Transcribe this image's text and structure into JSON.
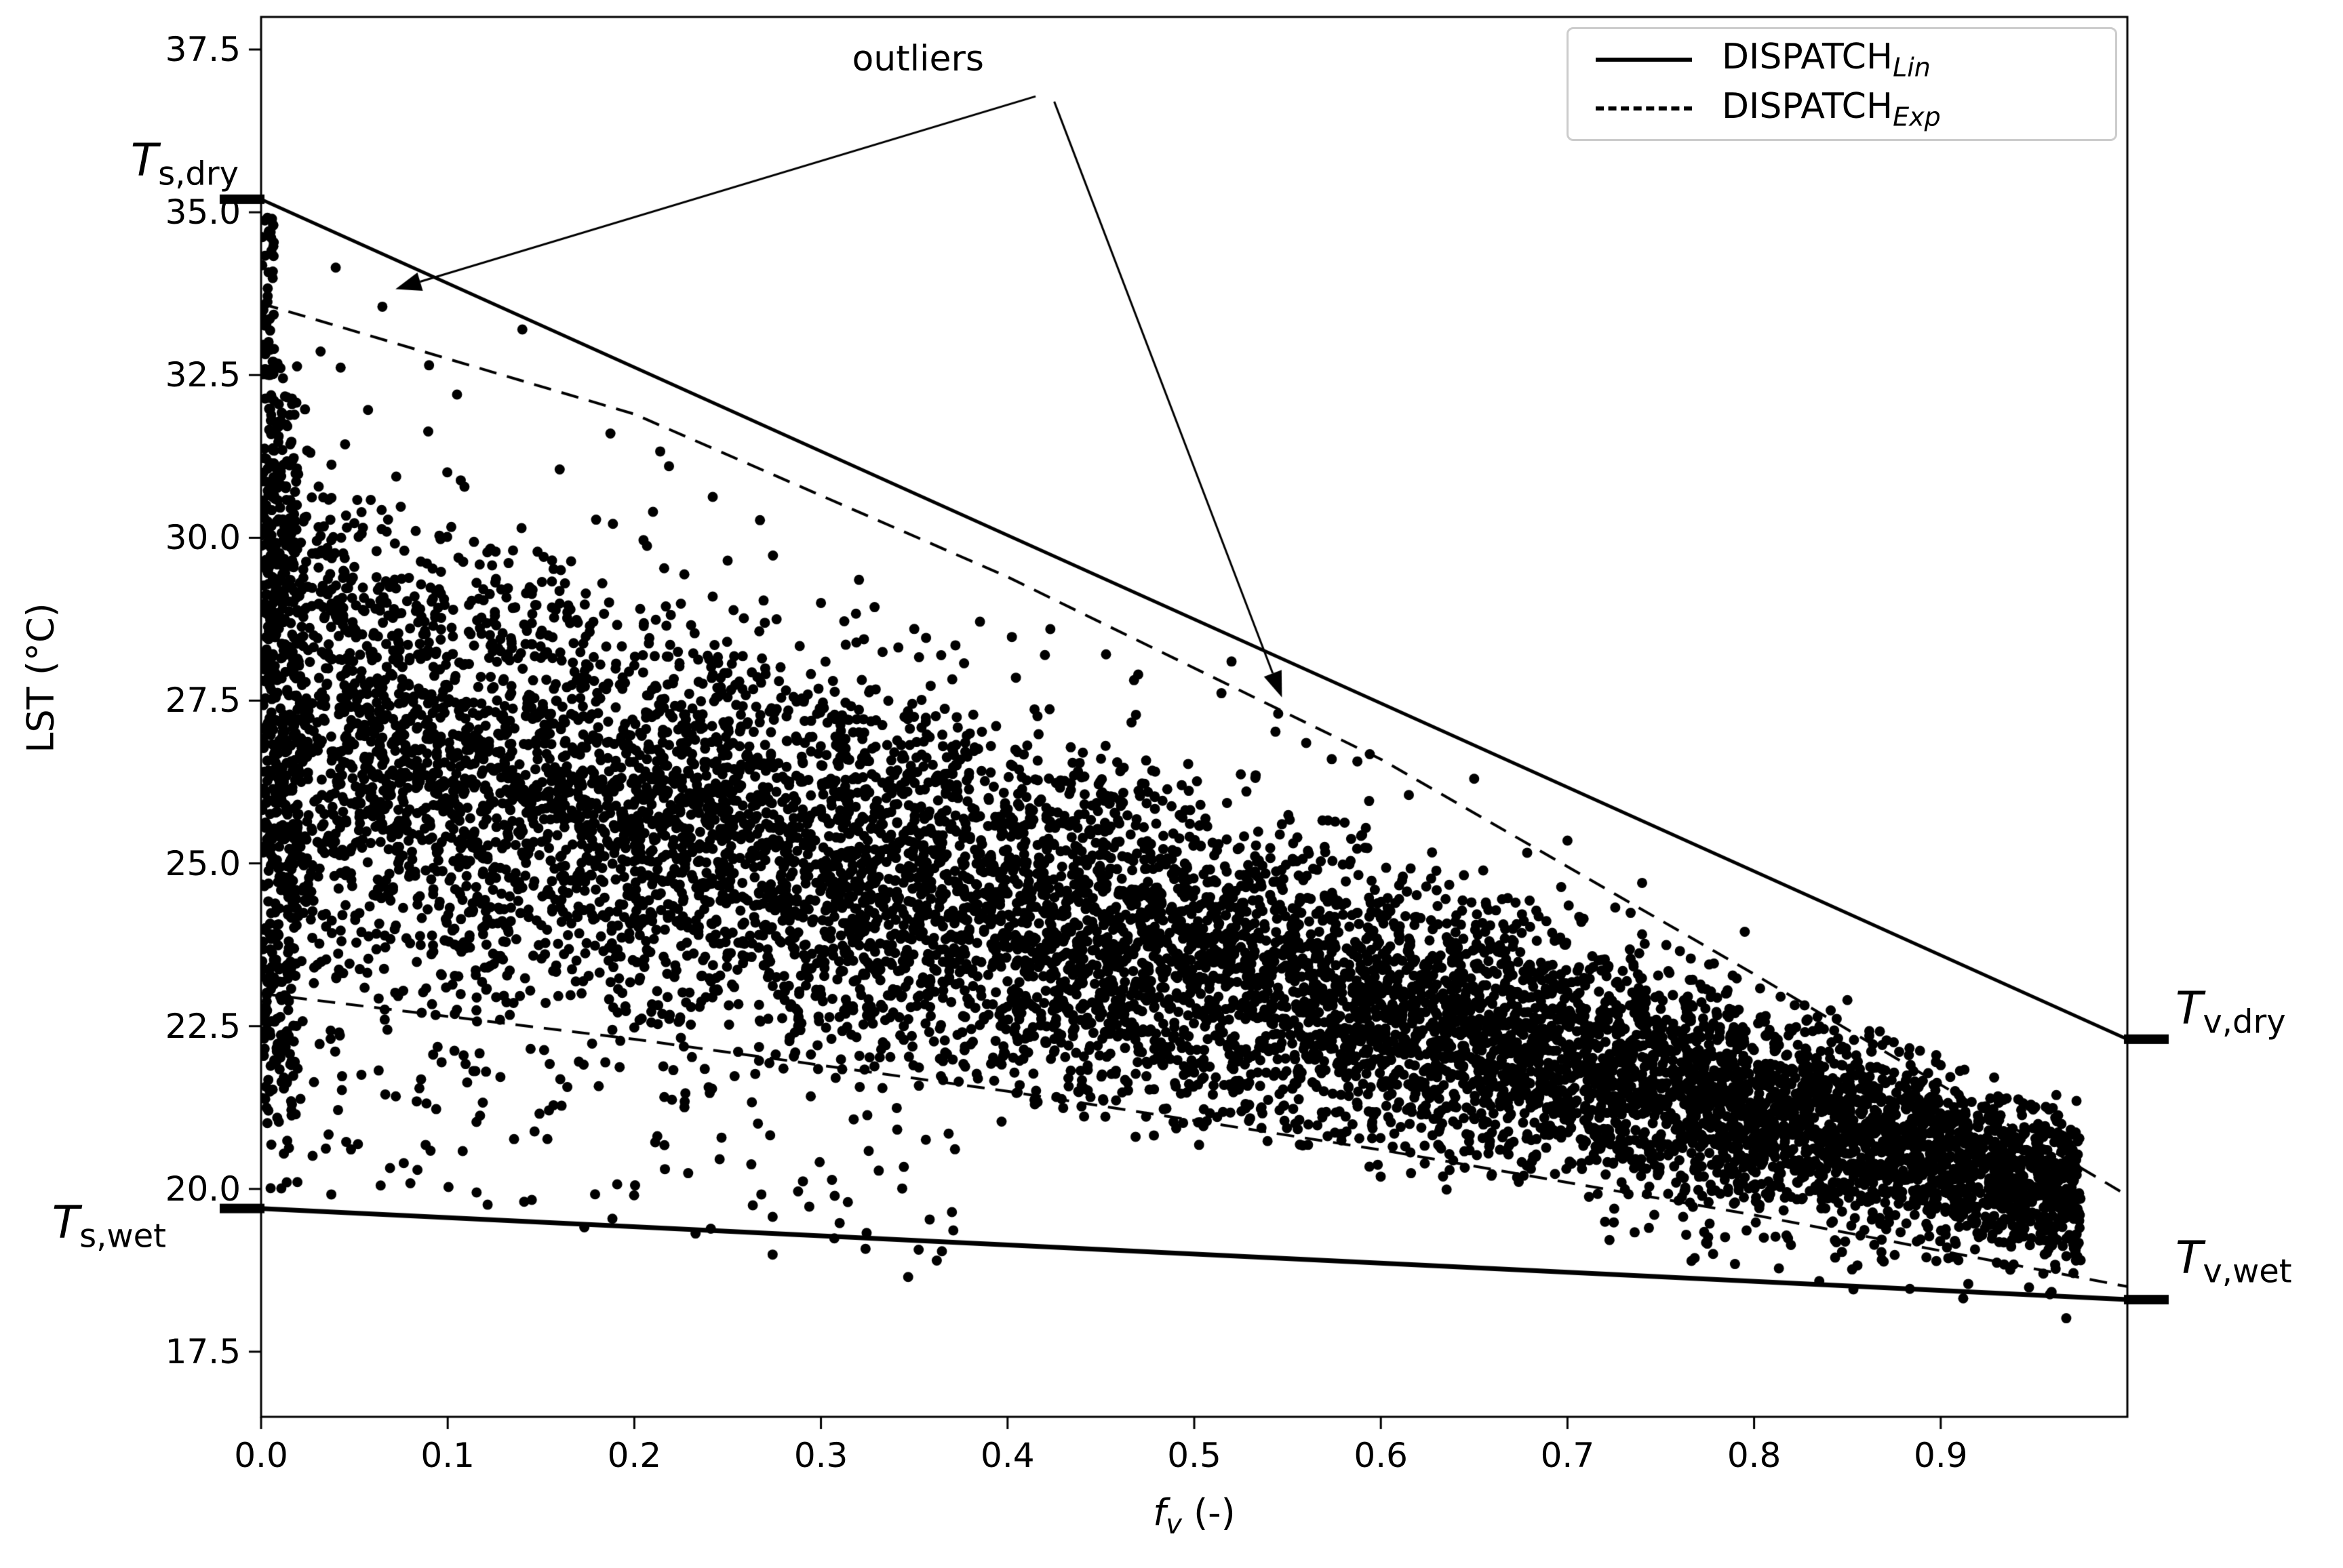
{
  "figure": {
    "ylabel": "LST (°C)",
    "xlabel": {
      "main": "f",
      "sub": "v",
      "rest": " (-)"
    }
  },
  "legend": {
    "entries": [
      {
        "style": "solid",
        "label_main": "DISPATCH",
        "label_sub": "Lin"
      },
      {
        "style": "dashed",
        "label_main": "DISPATCH",
        "label_sub": "Exp"
      }
    ]
  },
  "annotations": {
    "label": "outliers",
    "text_center": [
      0.352,
      37.35
    ],
    "arrows": [
      {
        "from": [
          0.415,
          36.78
        ],
        "to": [
          0.072,
          33.82
        ]
      },
      {
        "from": [
          0.425,
          36.7
        ],
        "to": [
          0.547,
          27.55
        ]
      }
    ]
  },
  "edge_labels": [
    {
      "main": "T",
      "sub": "s,dry",
      "side": "left",
      "value": 35.2
    },
    {
      "main": "T",
      "sub": "s,wet",
      "side": "left",
      "value": 19.7
    },
    {
      "main": "T",
      "sub": "v,dry",
      "side": "right",
      "value": 22.3
    },
    {
      "main": "T",
      "sub": "v,wet",
      "side": "right",
      "value": 18.3
    }
  ],
  "chart_data": {
    "type": "scatter",
    "title": "",
    "xlabel": "f_v (-)",
    "ylabel": "LST (°C)",
    "xlim": [
      0.0,
      1.0
    ],
    "ylim": [
      16.5,
      38.0
    ],
    "grid": false,
    "legend_position": "upper right",
    "marker_color": "#000000",
    "x_tick_values": [
      0.0,
      0.1,
      0.2,
      0.3,
      0.4,
      0.5,
      0.6,
      0.7,
      0.8,
      0.9
    ],
    "x_tick_labels": [
      "0.0",
      "0.1",
      "0.2",
      "0.3",
      "0.4",
      "0.5",
      "0.6",
      "0.7",
      "0.8",
      "0.9"
    ],
    "y_tick_values": [
      17.5,
      20.0,
      22.5,
      25.0,
      27.5,
      30.0,
      32.5,
      35.0,
      37.5
    ],
    "y_tick_labels": [
      "17.5",
      "20.0",
      "22.5",
      "25.0",
      "27.5",
      "30.0",
      "32.5",
      "35.0",
      "37.5"
    ],
    "lines": [
      {
        "name": "DISPATCH_Lin dry edge",
        "style": "solid",
        "lw": 5,
        "x": [
          0.0,
          1.0
        ],
        "y": [
          35.2,
          22.3
        ],
        "end_markers": true,
        "endpoint_labels": [
          "T_s,dry",
          "T_v,dry"
        ]
      },
      {
        "name": "DISPATCH_Lin wet edge",
        "style": "solid",
        "lw": 7,
        "x": [
          0.0,
          1.0
        ],
        "y": [
          19.7,
          18.3
        ],
        "end_markers": true,
        "endpoint_labels": [
          "T_s,wet",
          "T_v,wet"
        ]
      },
      {
        "name": "DISPATCH_Exp dry edge",
        "style": "dashed",
        "lw": 4,
        "x": [
          0.0,
          0.2,
          0.4,
          0.6,
          0.8,
          1.0
        ],
        "y": [
          33.6,
          31.9,
          29.4,
          26.6,
          23.3,
          19.9
        ],
        "end_markers": false
      },
      {
        "name": "DISPATCH_Exp wet edge",
        "style": "dashed",
        "lw": 4,
        "x": [
          0.0,
          0.2,
          0.4,
          0.6,
          0.8,
          1.0
        ],
        "y": [
          23.0,
          22.3,
          21.5,
          20.6,
          19.6,
          18.5
        ],
        "end_markers": false
      }
    ],
    "scatter": {
      "seed": 1234567,
      "marker_radius_px": 7.5,
      "band_upper": [
        31.9,
        -11.0
      ],
      "band_lower": [
        22.6,
        -4.0
      ],
      "components": [
        {
          "name": "main-band",
          "n": 9500,
          "fv": [
            0.0,
            0.975
          ],
          "mode": "band-triangular",
          "jitter": 0.5
        },
        {
          "name": "left-column",
          "n": 430,
          "fv": [
            0.0,
            0.02
          ],
          "mode": "uniform-pow-y",
          "y": [
            20.4,
            32.7
          ],
          "pow": 0.85
        },
        {
          "name": "left-spike",
          "n": 55,
          "fv": [
            0.0,
            0.007
          ],
          "mode": "uniform-pow-y",
          "y": [
            32.5,
            35.0
          ],
          "pow": 2.4
        },
        {
          "name": "low-left-sparse",
          "n": 150,
          "fv": [
            0.0,
            0.38
          ],
          "mode": "below-band",
          "depth": 2.6,
          "fv_pow": 1.6
        },
        {
          "name": "upper-outlier-fringe",
          "n": 95,
          "fv": [
            0.0,
            0.95
          ],
          "mode": "band-to-dashed",
          "pow": 2.0
        },
        {
          "name": "bottom-right-tail",
          "n": 50,
          "fv": [
            0.72,
            0.97
          ],
          "mode": "below-band",
          "depth": 0.8,
          "fv_pow": 1.0
        }
      ]
    },
    "explicit_outliers": [
      [
        0.04,
        34.15
      ],
      [
        0.065,
        33.55
      ],
      [
        0.09,
        32.65
      ],
      [
        0.105,
        32.2
      ],
      [
        0.14,
        33.2
      ],
      [
        0.16,
        31.05
      ],
      [
        0.21,
        30.4
      ],
      [
        0.25,
        29.65
      ],
      [
        0.3,
        29.0
      ],
      [
        0.35,
        28.6
      ],
      [
        0.42,
        28.2
      ],
      [
        0.47,
        27.9
      ],
      [
        0.52,
        28.1
      ],
      [
        0.545,
        27.3
      ],
      [
        0.56,
        26.85
      ],
      [
        0.615,
        26.05
      ],
      [
        0.65,
        26.3
      ],
      [
        0.7,
        25.35
      ],
      [
        0.74,
        24.7
      ],
      [
        0.795,
        23.95
      ],
      [
        0.85,
        22.9
      ],
      [
        0.9,
        21.9
      ],
      [
        0.955,
        18.7
      ]
    ],
    "annotation": {
      "text": "outliers",
      "targets": [
        [
          0.065,
          33.55
        ],
        [
          0.545,
          27.3
        ]
      ]
    }
  }
}
